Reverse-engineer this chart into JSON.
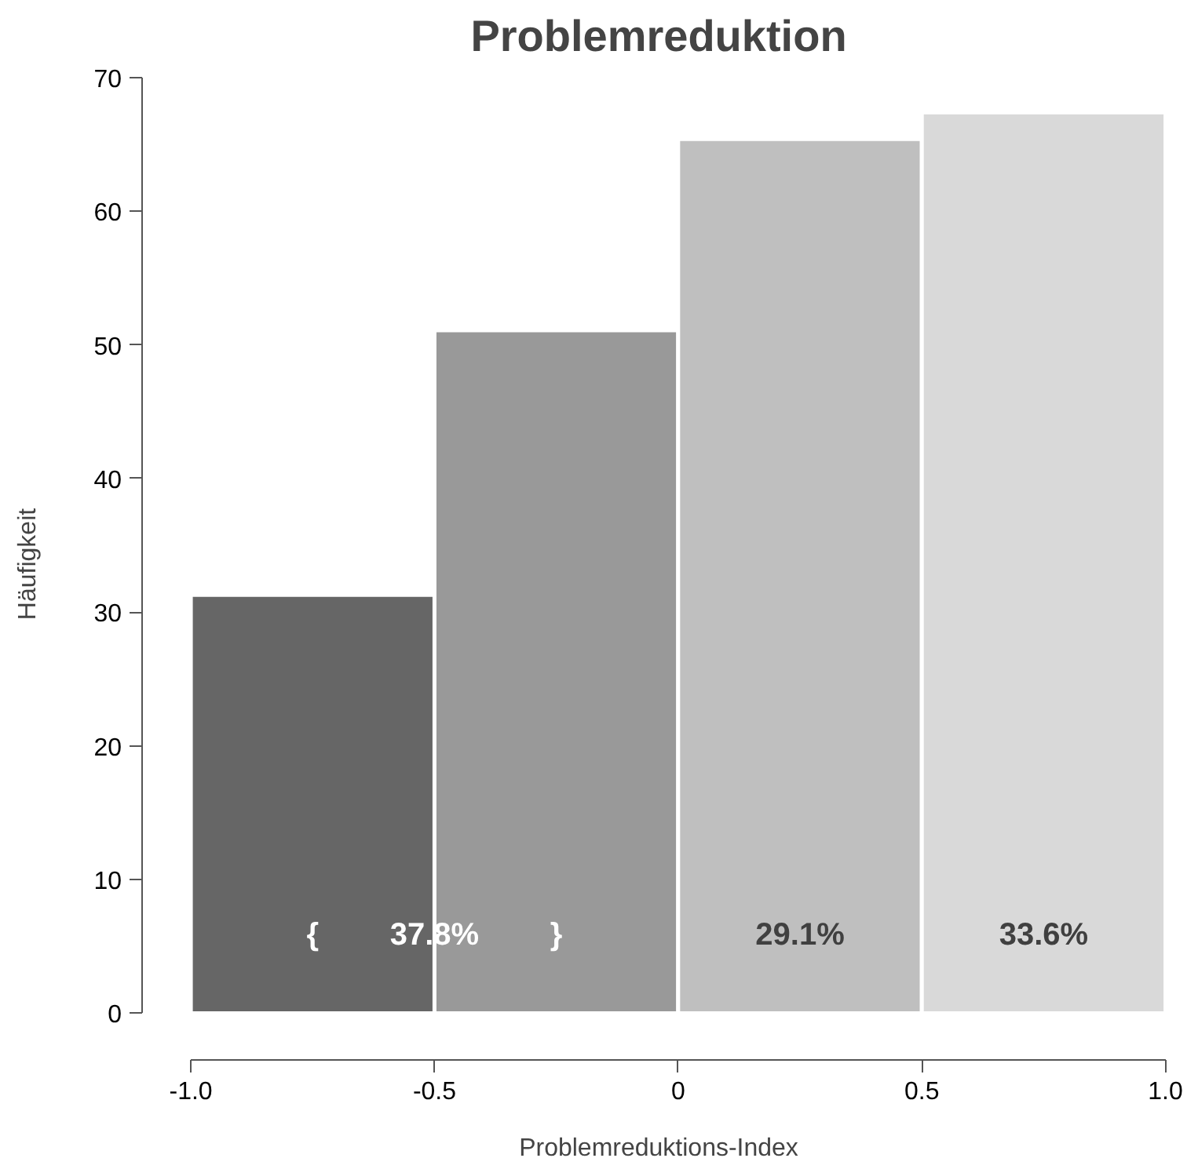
{
  "chart_data": {
    "type": "histogram",
    "title": "Problemreduktion",
    "xlabel": "Problemreduktions-Index",
    "ylabel": "Häufigkeit",
    "bins": [
      -1.0,
      -0.5,
      0,
      0.5,
      1.0
    ],
    "values": [
      31.3,
      51.1,
      65.4,
      67.4
    ],
    "colors": [
      "#666666",
      "#999999",
      "#bfbfbf",
      "#d9d9d9"
    ],
    "xlim": [
      -1.0,
      1.0
    ],
    "ylim": [
      0,
      70
    ],
    "xticks": [
      {
        "value": -1.0,
        "label": "-1.0"
      },
      {
        "value": -0.5,
        "label": "-0.5"
      },
      0,
      {
        "value": 0.5,
        "label": "0.5"
      },
      {
        "value": 1.0,
        "label": "1.0"
      }
    ],
    "yticks": [
      0,
      10,
      20,
      30,
      40,
      50,
      60,
      70
    ],
    "grid": false,
    "annotations": [
      "{",
      "37.8%",
      "}",
      "29.1%",
      "33.6%"
    ]
  }
}
